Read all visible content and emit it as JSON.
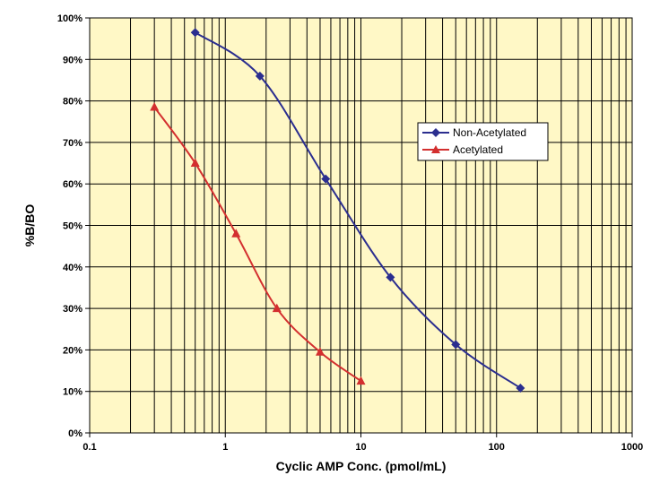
{
  "chart_data": {
    "type": "line",
    "title": "",
    "xlabel": "Cyclic AMP Conc. (pmol/mL)",
    "ylabel": "%B/BO",
    "x_scale": "log",
    "xlim": [
      0.1,
      1000
    ],
    "ylim": [
      0,
      100
    ],
    "x_ticks": [
      "0.1",
      "1",
      "10",
      "100",
      "1000"
    ],
    "y_ticks": [
      "0%",
      "10%",
      "20%",
      "30%",
      "40%",
      "50%",
      "60%",
      "70%",
      "80%",
      "90%",
      "100%"
    ],
    "grid": true,
    "legend_position": "right",
    "plot_background": "#FFF8C6",
    "series": [
      {
        "name": "Non-Acetylated",
        "color": "#2B2E8F",
        "marker": "diamond",
        "x": [
          0.6,
          1.8,
          5.5,
          16.5,
          50,
          150
        ],
        "y": [
          96.5,
          86,
          61.2,
          37.5,
          21.3,
          10.8
        ]
      },
      {
        "name": "Acetylated",
        "color": "#D32F2F",
        "marker": "triangle",
        "x": [
          0.3,
          0.6,
          1.2,
          2.4,
          5,
          10
        ],
        "y": [
          78.5,
          65,
          48,
          30,
          19.5,
          12.5
        ]
      }
    ]
  }
}
